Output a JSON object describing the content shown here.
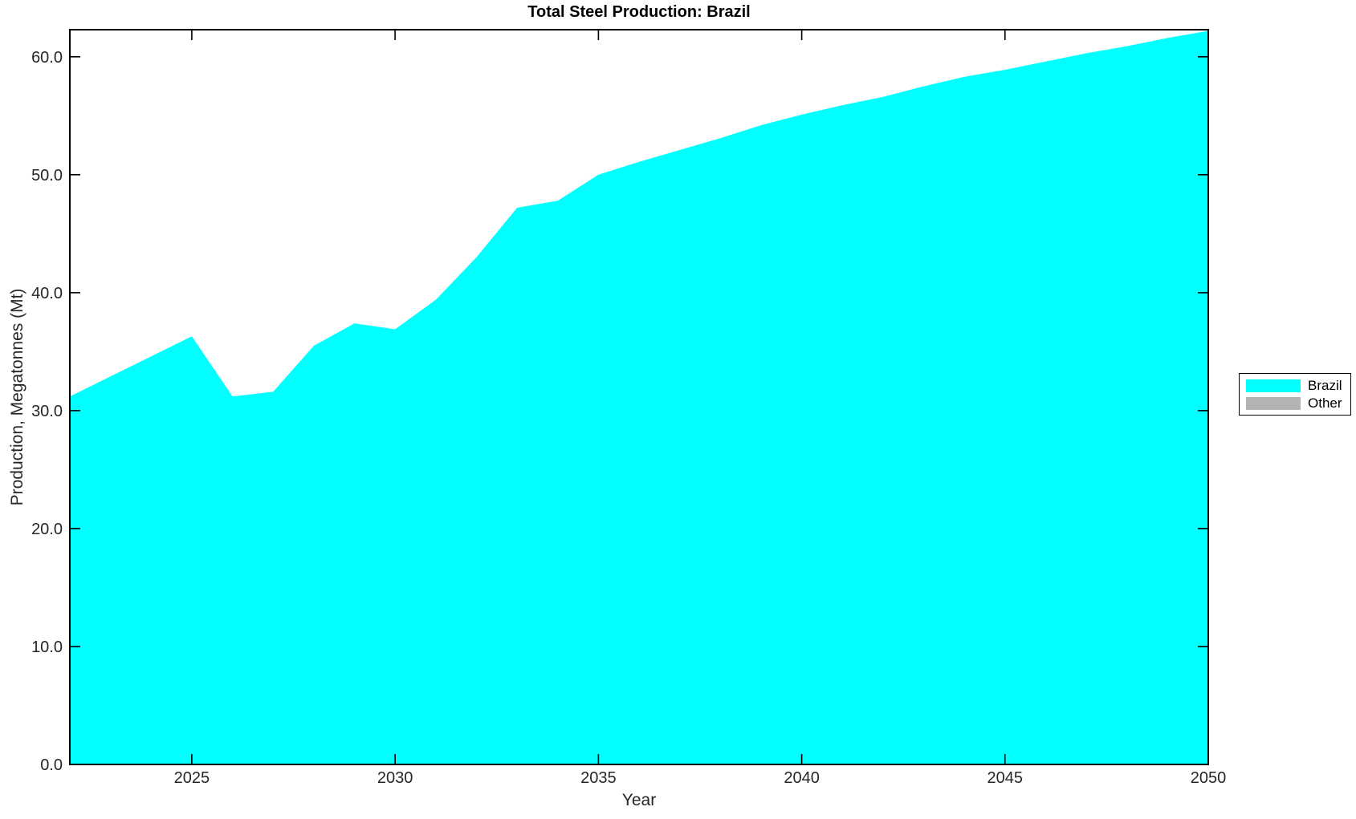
{
  "figure": {
    "title": "Total Steel Production: Brazil",
    "xlabel": "Year",
    "ylabel": "Production, Megatonnes (Mt)"
  },
  "legend": {
    "position": "right-outside",
    "items": [
      {
        "label": "Brazil",
        "color": "#00FFFF"
      },
      {
        "label": "Other",
        "color": "#B3B3B3"
      }
    ]
  },
  "chart_data": {
    "type": "area",
    "title": "Total Steel Production: Brazil",
    "xlabel": "Year",
    "ylabel": "Production, Megatonnes (Mt)",
    "x": [
      2022,
      2023,
      2024,
      2025,
      2026,
      2027,
      2028,
      2029,
      2030,
      2031,
      2032,
      2033,
      2034,
      2035,
      2036,
      2037,
      2038,
      2039,
      2040,
      2041,
      2042,
      2043,
      2044,
      2045,
      2046,
      2047,
      2048,
      2049,
      2050
    ],
    "series": [
      {
        "name": "Brazil",
        "color": "#00FFFF",
        "values": [
          31.2,
          32.9,
          34.6,
          36.3,
          31.2,
          31.6,
          35.5,
          37.4,
          36.9,
          39.4,
          43.0,
          47.2,
          47.8,
          50.0,
          51.1,
          52.1,
          53.1,
          54.2,
          55.1,
          55.9,
          56.6,
          57.5,
          58.3,
          58.9,
          59.6,
          60.3,
          60.9,
          61.6,
          62.2
        ]
      },
      {
        "name": "Other",
        "color": "#B3B3B3",
        "values": [
          0,
          0,
          0,
          0,
          0,
          0,
          0,
          0,
          0,
          0,
          0,
          0,
          0,
          0,
          0,
          0,
          0,
          0,
          0,
          0,
          0,
          0,
          0,
          0,
          0,
          0,
          0,
          0,
          0
        ]
      }
    ],
    "xlim": [
      2022,
      2050
    ],
    "ylim": [
      0,
      62.3
    ],
    "xticks": [
      {
        "value": 2025,
        "label": "2025"
      },
      {
        "value": 2030,
        "label": "2030"
      },
      {
        "value": 2035,
        "label": "2035"
      },
      {
        "value": 2040,
        "label": "2040"
      },
      {
        "value": 2045,
        "label": "2045"
      },
      {
        "value": 2050,
        "label": "2050"
      }
    ],
    "yticks": [
      {
        "value": 0,
        "label": "0.0"
      },
      {
        "value": 10,
        "label": "10.0"
      },
      {
        "value": 20,
        "label": "20.0"
      },
      {
        "value": 30,
        "label": "30.0"
      },
      {
        "value": 40,
        "label": "40.0"
      },
      {
        "value": 50,
        "label": "50.0"
      },
      {
        "value": 60,
        "label": "60.0"
      }
    ],
    "grid": false,
    "legend_position": "right-outside",
    "background": "#FFFFFF",
    "axis_color": "#000000",
    "tick_label_color": "#262626",
    "tick_direction": "in"
  }
}
